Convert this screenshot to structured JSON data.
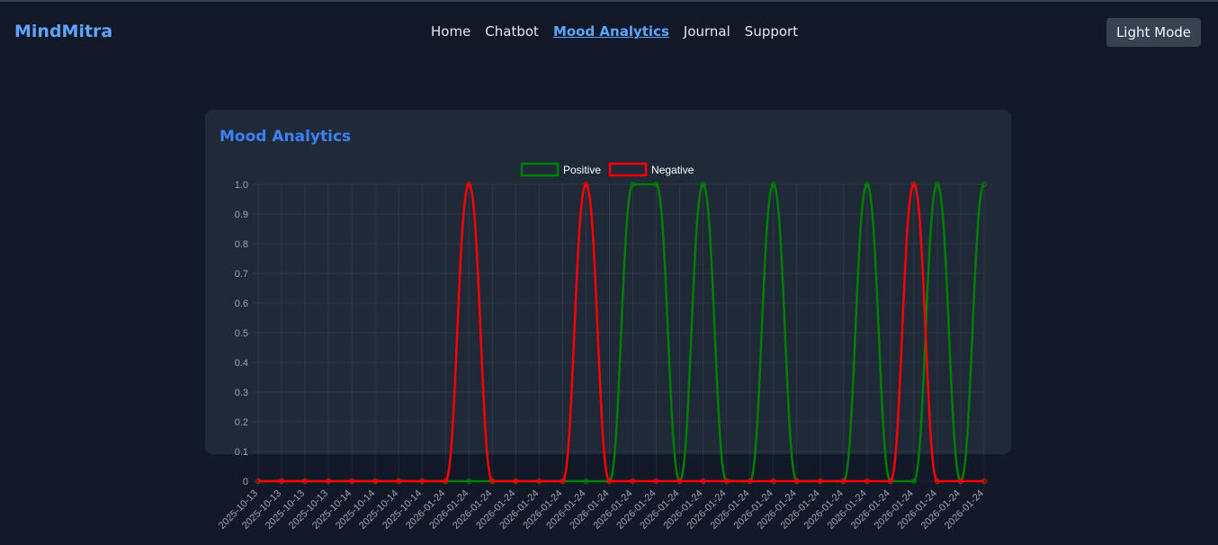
{
  "nav": {
    "brand": "MindMitra",
    "links": [
      "Home",
      "Chatbot",
      "Mood Analytics",
      "Journal",
      "Support"
    ],
    "active": 2,
    "button": "Light Mode"
  },
  "chart_data": {
    "type": "line",
    "title": "Mood Analytics",
    "categories": [
      "2025-10-13",
      "2025-10-13",
      "2025-10-13",
      "2025-10-13",
      "2025-10-14",
      "2025-10-14",
      "2025-10-14",
      "2025-10-14",
      "2026-01-24",
      "2026-01-24",
      "2026-01-24",
      "2026-01-24",
      "2026-01-24",
      "2026-01-24",
      "2026-01-24",
      "2026-01-24",
      "2026-01-24",
      "2026-01-24",
      "2026-01-24",
      "2026-01-24",
      "2026-01-24",
      "2026-01-24",
      "2026-01-24",
      "2026-01-24",
      "2026-01-24",
      "2026-01-24",
      "2026-01-24",
      "2026-01-24",
      "2026-01-24",
      "2026-01-24",
      "2026-01-24",
      "2026-01-24"
    ],
    "series": [
      {
        "name": "Positive",
        "color": "#008000",
        "values": [
          0,
          0,
          0,
          0,
          0,
          0,
          0,
          0,
          0,
          0,
          0,
          0,
          0,
          0,
          0,
          0,
          1,
          1,
          0,
          1,
          0,
          0,
          1,
          0,
          0,
          0,
          1,
          0,
          0,
          1,
          0,
          1
        ]
      },
      {
        "name": "Negative",
        "color": "#ff0000",
        "values": [
          0,
          0,
          0,
          0,
          0,
          0,
          0,
          0,
          0,
          1,
          0,
          0,
          0,
          0,
          1,
          0,
          0,
          0,
          0,
          0,
          0,
          0,
          0,
          0,
          0,
          0,
          0,
          0,
          1,
          0,
          0,
          0
        ]
      }
    ],
    "ylim": [
      0,
      1
    ],
    "yticks": [
      0,
      0.1,
      0.2,
      0.3,
      0.4,
      0.5,
      0.6,
      0.7,
      0.8,
      0.9,
      {
        "value": 1,
        "label": "1.0"
      }
    ],
    "grid": true,
    "legend": "top"
  }
}
